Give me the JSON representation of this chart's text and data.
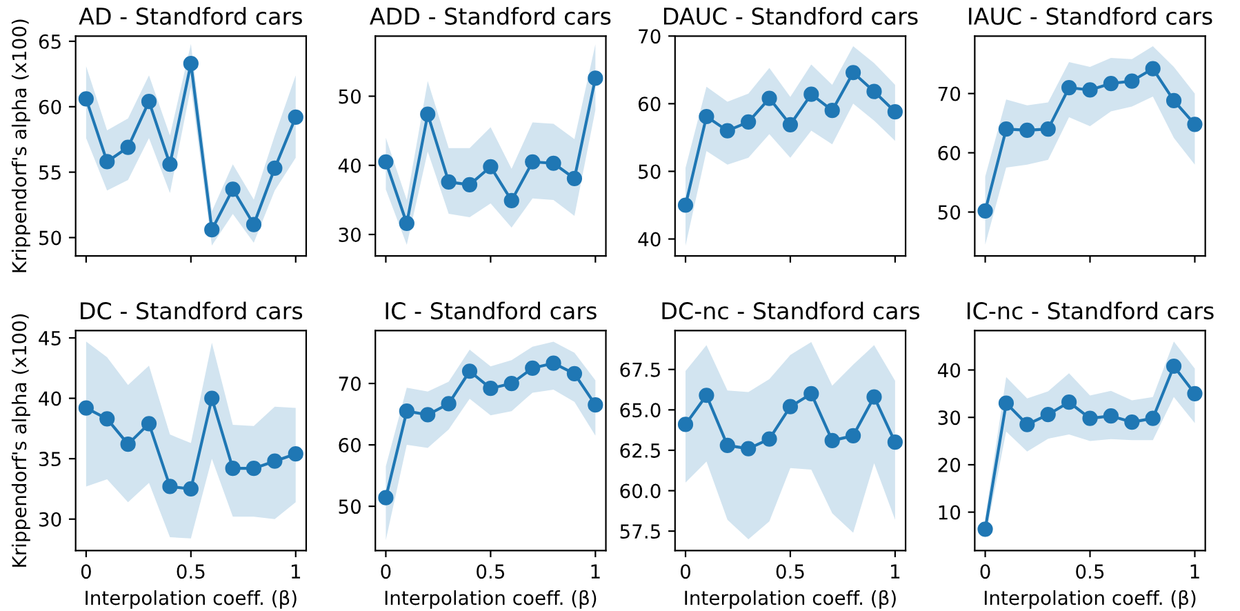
{
  "chart_data": [
    {
      "type": "line",
      "title": "AD - Standford cars",
      "ylabel": "Krippendorf's alpha (x100)",
      "x": [
        0,
        0.1,
        0.2,
        0.3,
        0.4,
        0.5,
        0.6,
        0.7,
        0.8,
        0.9,
        1
      ],
      "xlim": [
        -0.05,
        1.05
      ],
      "xticks": [
        0,
        0.5,
        1
      ],
      "ylim": [
        48.6,
        65.4
      ],
      "yticks": [
        50,
        55,
        60,
        65
      ],
      "marker": "circle",
      "grid": false,
      "tick_labels": "y",
      "series": [
        {
          "color": "#1f77b4",
          "values": [
            60.6,
            55.8,
            56.9,
            60.4,
            55.6,
            63.3,
            50.6,
            53.7,
            51.0,
            55.3,
            59.2
          ],
          "lower": [
            57.6,
            53.6,
            54.4,
            57.6,
            53.4,
            61.5,
            49.4,
            51.8,
            49.6,
            53.6,
            56.1
          ],
          "upper": [
            63.1,
            58.2,
            59.1,
            62.4,
            57.8,
            64.8,
            52.0,
            55.6,
            52.9,
            57.8,
            62.4
          ]
        }
      ]
    },
    {
      "type": "line",
      "title": "ADD - Standford cars",
      "x": [
        0,
        0.1,
        0.2,
        0.3,
        0.4,
        0.5,
        0.6,
        0.7,
        0.8,
        0.9,
        1
      ],
      "xlim": [
        -0.05,
        1.05
      ],
      "xticks": [
        0,
        0.5,
        1
      ],
      "ylim": [
        26.9,
        58.7
      ],
      "yticks": [
        30,
        40,
        50
      ],
      "marker": "circle",
      "grid": false,
      "tick_labels": "y",
      "series": [
        {
          "color": "#1f77b4",
          "values": [
            40.5,
            31.6,
            47.4,
            37.6,
            37.2,
            39.8,
            34.9,
            40.5,
            40.3,
            38.1,
            52.6
          ],
          "lower": [
            36.5,
            28.5,
            42.0,
            33.0,
            32.5,
            34.5,
            31.0,
            35.2,
            35.0,
            32.7,
            48.0
          ],
          "upper": [
            44.0,
            35.0,
            52.2,
            42.5,
            42.5,
            45.5,
            39.5,
            46.2,
            46.0,
            43.8,
            57.5
          ]
        }
      ]
    },
    {
      "type": "line",
      "title": "DAUC - Standford cars",
      "x": [
        0,
        0.1,
        0.2,
        0.3,
        0.4,
        0.5,
        0.6,
        0.7,
        0.8,
        0.9,
        1
      ],
      "xlim": [
        -0.05,
        1.05
      ],
      "xticks": [
        0,
        0.5,
        1
      ],
      "ylim": [
        37.5,
        70
      ],
      "yticks": [
        40,
        50,
        60,
        70
      ],
      "marker": "circle",
      "grid": false,
      "tick_labels": "y",
      "series": [
        {
          "color": "#1f77b4",
          "values": [
            45.0,
            58.1,
            56.0,
            57.3,
            60.8,
            56.9,
            61.4,
            59.0,
            64.6,
            61.8,
            58.8
          ],
          "lower": [
            39.0,
            53.0,
            51.0,
            52.0,
            55.5,
            52.0,
            56.0,
            54.0,
            60.0,
            57.5,
            54.5
          ],
          "upper": [
            50.5,
            62.5,
            60.3,
            61.5,
            65.3,
            61.0,
            65.8,
            62.8,
            68.5,
            66.0,
            62.8
          ]
        }
      ]
    },
    {
      "type": "line",
      "title": "IAUC - Standford cars",
      "x": [
        0,
        0.1,
        0.2,
        0.3,
        0.4,
        0.5,
        0.6,
        0.7,
        0.8,
        0.9,
        1
      ],
      "xlim": [
        -0.05,
        1.05
      ],
      "xticks": [
        0,
        0.5,
        1
      ],
      "ylim": [
        42.6,
        79.7
      ],
      "yticks": [
        50,
        60,
        70
      ],
      "marker": "circle",
      "grid": false,
      "tick_labels": "y",
      "series": [
        {
          "color": "#1f77b4",
          "values": [
            50.2,
            64.0,
            63.8,
            64.0,
            71.0,
            70.6,
            71.7,
            72.1,
            74.2,
            68.8,
            64.8
          ],
          "lower": [
            44.5,
            57.5,
            58.0,
            58.8,
            66.0,
            64.5,
            67.0,
            67.8,
            69.5,
            62.5,
            58.0
          ],
          "upper": [
            56.0,
            69.0,
            68.0,
            68.5,
            75.3,
            74.5,
            76.0,
            75.8,
            78.0,
            74.5,
            70.0
          ]
        }
      ]
    },
    {
      "type": "line",
      "title": "DC - Standford cars",
      "ylabel": "Krippendorf's alpha (x100)",
      "xlabel": "Interpolation coeff. (β)",
      "x": [
        0,
        0.1,
        0.2,
        0.3,
        0.4,
        0.5,
        0.6,
        0.7,
        0.8,
        0.9,
        1
      ],
      "xlim": [
        -0.05,
        1.05
      ],
      "xticks": [
        0,
        0.5,
        1
      ],
      "ylim": [
        27.4,
        45.6
      ],
      "yticks": [
        30,
        35,
        40,
        45
      ],
      "marker": "circle",
      "grid": false,
      "series": [
        {
          "color": "#1f77b4",
          "values": [
            39.2,
            38.3,
            36.2,
            37.9,
            32.7,
            32.5,
            40.0,
            34.2,
            34.2,
            34.8,
            35.4
          ],
          "lower": [
            32.7,
            33.3,
            31.4,
            33.0,
            28.5,
            28.4,
            35.0,
            30.2,
            30.2,
            30.0,
            31.4
          ],
          "upper": [
            44.7,
            43.4,
            41.1,
            42.7,
            37.0,
            36.3,
            44.6,
            37.8,
            37.7,
            39.3,
            39.2
          ]
        }
      ]
    },
    {
      "type": "line",
      "title": "IC - Standford cars",
      "xlabel": "Interpolation coeff. (β)",
      "x": [
        0,
        0.1,
        0.2,
        0.3,
        0.4,
        0.5,
        0.6,
        0.7,
        0.8,
        0.9,
        1
      ],
      "xlim": [
        -0.05,
        1.05
      ],
      "xticks": [
        0,
        0.5,
        1
      ],
      "ylim": [
        42.8,
        78.6
      ],
      "yticks": [
        50,
        60,
        70
      ],
      "marker": "circle",
      "grid": false,
      "series": [
        {
          "color": "#1f77b4",
          "values": [
            51.4,
            65.5,
            64.9,
            66.7,
            72.0,
            69.2,
            70.0,
            72.5,
            73.3,
            71.6,
            66.5
          ],
          "lower": [
            44.5,
            60.0,
            59.5,
            62.5,
            67.5,
            64.8,
            65.5,
            68.5,
            69.0,
            67.0,
            61.5
          ],
          "upper": [
            56.5,
            69.3,
            68.7,
            70.3,
            75.5,
            72.8,
            73.8,
            76.0,
            76.8,
            75.0,
            70.5
          ]
        }
      ]
    },
    {
      "type": "line",
      "title": "DC-nc - Standford cars",
      "xlabel": "Interpolation coeff. (β)",
      "x": [
        0,
        0.1,
        0.2,
        0.3,
        0.4,
        0.5,
        0.6,
        0.7,
        0.8,
        0.9,
        1
      ],
      "xlim": [
        -0.05,
        1.05
      ],
      "xticks": [
        0,
        0.5,
        1
      ],
      "ylim": [
        56.3,
        69.9
      ],
      "yticks": [
        57.5,
        {
          "value": 60,
          "label": "60.0"
        },
        62.5,
        {
          "value": 65,
          "label": "65.0"
        },
        67.5
      ],
      "marker": "circle",
      "grid": false,
      "series": [
        {
          "color": "#1f77b4",
          "values": [
            64.1,
            65.9,
            62.8,
            62.6,
            63.2,
            65.2,
            66.0,
            63.1,
            63.4,
            65.8,
            63.0
          ],
          "lower": [
            60.5,
            61.8,
            58.2,
            57.0,
            58.1,
            61.4,
            61.3,
            58.6,
            57.4,
            61.7,
            58.2
          ],
          "upper": [
            67.4,
            69.0,
            66.2,
            66.1,
            66.9,
            68.4,
            69.2,
            66.5,
            67.8,
            69.0,
            66.8
          ]
        }
      ]
    },
    {
      "type": "line",
      "title": "IC-nc - Standford cars",
      "xlabel": "Interpolation coeff. (β)",
      "x": [
        0,
        0.1,
        0.2,
        0.3,
        0.4,
        0.5,
        0.6,
        0.7,
        0.8,
        0.9,
        1
      ],
      "xlim": [
        -0.05,
        1.05
      ],
      "xticks": [
        0,
        0.5,
        1
      ],
      "ylim": [
        1.9,
        48.3
      ],
      "yticks": [
        10,
        20,
        30,
        40
      ],
      "marker": "circle",
      "grid": false,
      "series": [
        {
          "color": "#1f77b4",
          "values": [
            6.4,
            33.0,
            28.5,
            30.6,
            33.2,
            29.8,
            30.3,
            29.0,
            29.8,
            40.8,
            35.0
          ],
          "lower": [
            4.5,
            27.0,
            22.8,
            25.5,
            26.4,
            25.0,
            25.4,
            25.2,
            25.2,
            34.3,
            28.8
          ],
          "upper": [
            8.8,
            38.5,
            34.0,
            35.5,
            39.3,
            34.6,
            35.6,
            33.6,
            34.3,
            46.0,
            40.3
          ]
        }
      ]
    }
  ]
}
